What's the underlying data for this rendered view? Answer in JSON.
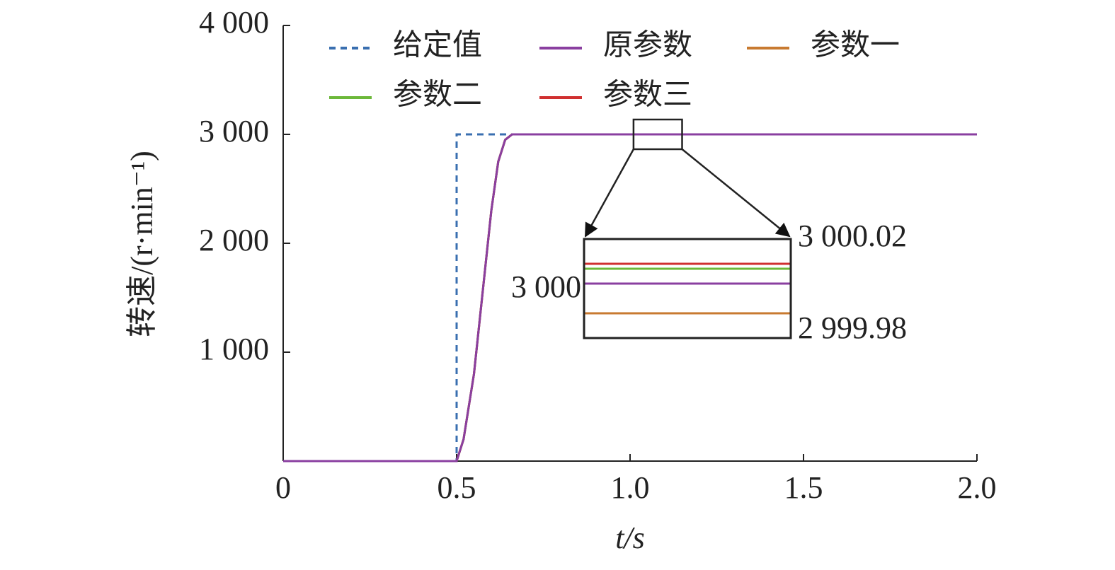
{
  "chart_data": [
    {
      "type": "line",
      "xlabel": "t/s",
      "ylabel": "转速/(r·min⁻¹)",
      "xlim": [
        0,
        2.0
      ],
      "ylim": [
        0,
        4000
      ],
      "xticks": [
        0,
        0.5,
        {
          "value": 1.0,
          "label": "1.0"
        },
        1.5,
        {
          "value": 2.0,
          "label": "2.0"
        }
      ],
      "yticks": [
        {
          "value": 1000,
          "label": "1 000"
        },
        {
          "value": 2000,
          "label": "2 000"
        },
        {
          "value": 3000,
          "label": "3 000"
        },
        {
          "value": 4000,
          "label": "4 000"
        }
      ],
      "grid": false,
      "series": [
        {
          "name": "给定值",
          "color": "#3a6fb0",
          "style": "dashed",
          "x": [
            0,
            0.5,
            0.5,
            2.0
          ],
          "values": [
            0,
            0,
            3000,
            3000
          ]
        },
        {
          "name": "原参数",
          "color": "#8a3fa0",
          "x": [
            0,
            0.5,
            0.52,
            0.55,
            0.58,
            0.6,
            0.62,
            0.64,
            0.66,
            2.0
          ],
          "values": [
            0,
            0,
            200,
            800,
            1700,
            2300,
            2750,
            2950,
            3000.002,
            3000.002
          ]
        },
        {
          "name": "参数一",
          "color": "#c87a30",
          "x": [
            0,
            0.5,
            0.52,
            0.55,
            0.58,
            0.6,
            0.62,
            0.64,
            0.66,
            2.0
          ],
          "values": [
            0,
            0,
            200,
            800,
            1700,
            2300,
            2750,
            2950,
            2999.99,
            2999.99
          ]
        },
        {
          "name": "参数二",
          "color": "#6cb83a",
          "x": [
            0,
            0.5,
            0.52,
            0.55,
            0.58,
            0.6,
            0.62,
            0.64,
            0.66,
            2.0
          ],
          "values": [
            0,
            0,
            200,
            800,
            1700,
            2300,
            2750,
            2950,
            3000.008,
            3000.008
          ]
        },
        {
          "name": "参数三",
          "color": "#d03030",
          "x": [
            0,
            0.5,
            0.52,
            0.55,
            0.58,
            0.6,
            0.62,
            0.64,
            0.66,
            2.0
          ],
          "values": [
            0,
            0,
            200,
            800,
            1700,
            2300,
            2750,
            2950,
            3000.01,
            3000.01
          ]
        }
      ]
    },
    {
      "type": "line",
      "x": [
        1.01,
        1.15
      ],
      "xlim": [
        1.01,
        1.15
      ],
      "ylim": [
        2999.98,
        3000.02
      ],
      "yticks": [
        {
          "value": 3000.02,
          "label": "3 000.02"
        },
        {
          "value": 3000,
          "label": "3 000"
        },
        {
          "value": 2999.98,
          "label": "2 999.98"
        }
      ],
      "series": [
        {
          "color": "#c87a30",
          "values": [
            2999.99,
            2999.99
          ]
        },
        {
          "color": "#6cb83a",
          "values": [
            3000.008,
            3000.008
          ]
        },
        {
          "color": "#d03030",
          "values": [
            3000.01,
            3000.01
          ]
        },
        {
          "color": "#8a3fa0",
          "values": [
            3000.002,
            3000.002
          ]
        }
      ]
    }
  ]
}
